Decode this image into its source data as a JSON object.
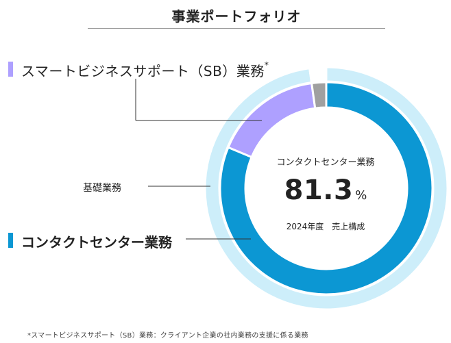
{
  "title": "事業ポートフォリオ",
  "colors": {
    "contact_center": "#0c97d3",
    "sb": "#aea0ff",
    "other": "#a0a0a0",
    "basic_ring": "#cdeefa",
    "text": "#222222"
  },
  "labels": {
    "sb": "スマートビジネスサポート（SB）業務",
    "sb_mark": "*",
    "basic": "基礎業務",
    "contact_center": "コンタクトセンター業務"
  },
  "center": {
    "name": "コンタクトセンター業務",
    "value": "81.3",
    "unit": "%",
    "note": "2024年度　売上構成"
  },
  "footnote": "*スマートビジネスサポート（SB）業務：クライアント企業の社内業務の支援に係る業務",
  "chart_data": {
    "type": "pie",
    "variant": "donut",
    "title": "事業ポートフォリオ",
    "center_label": "コンタクトセンター業務 81.3% 2024年度 売上構成",
    "inner_ring": [
      {
        "name": "コンタクトセンター業務",
        "value": 81.3,
        "color": "#0c97d3"
      },
      {
        "name": "スマートビジネスサポート（SB）業務",
        "value": 16.5,
        "color": "#aea0ff"
      },
      {
        "name": "",
        "value": 2.2,
        "color": "#a0a0a0"
      }
    ],
    "outer_ring": [
      {
        "name": "基礎業務",
        "value": 97.8,
        "color": "#cdeefa"
      },
      {
        "name": "",
        "value": 2.2,
        "color": "#ffffff"
      }
    ]
  }
}
